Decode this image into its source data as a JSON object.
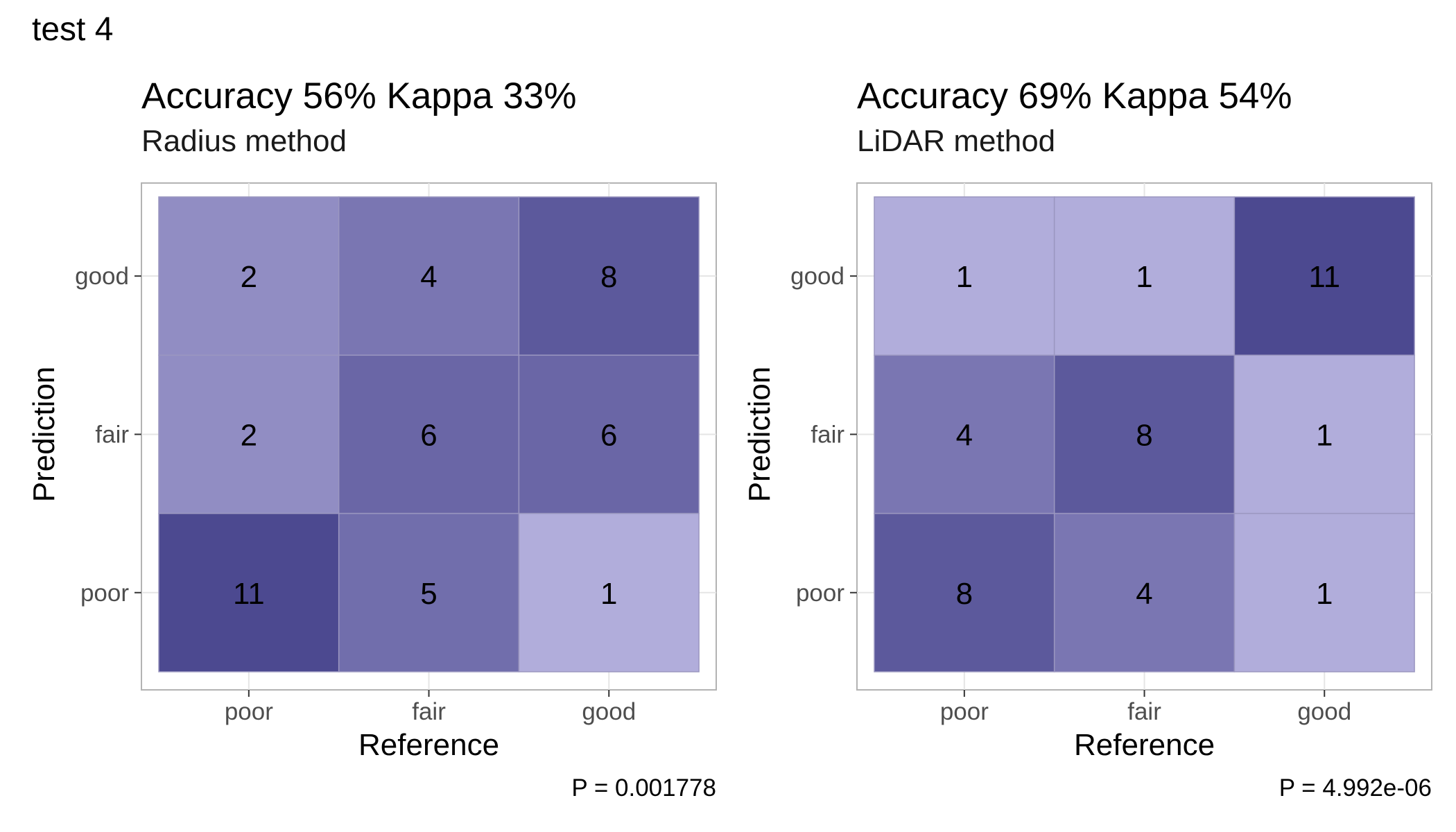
{
  "figure_title": "test 4",
  "chart_data": [
    {
      "type": "heatmap",
      "title": "Accuracy 56% Kappa 33%",
      "subtitle": "Radius method",
      "xlabel": "Reference",
      "ylabel": "Prediction",
      "x_categories": [
        "poor",
        "fair",
        "good"
      ],
      "y_categories": [
        "poor",
        "fair",
        "good"
      ],
      "cells": [
        {
          "reference": "poor",
          "prediction": "good",
          "value": 2
        },
        {
          "reference": "fair",
          "prediction": "good",
          "value": 4
        },
        {
          "reference": "good",
          "prediction": "good",
          "value": 8
        },
        {
          "reference": "poor",
          "prediction": "fair",
          "value": 2
        },
        {
          "reference": "fair",
          "prediction": "fair",
          "value": 6
        },
        {
          "reference": "good",
          "prediction": "fair",
          "value": 6
        },
        {
          "reference": "poor",
          "prediction": "poor",
          "value": 11
        },
        {
          "reference": "fair",
          "prediction": "poor",
          "value": 5
        },
        {
          "reference": "good",
          "prediction": "poor",
          "value": 1
        }
      ],
      "caption": "P = 0.001778",
      "grid": true,
      "color_low": "#b1addb",
      "color_high": "#4c4990"
    },
    {
      "type": "heatmap",
      "title": "Accuracy 69% Kappa 54%",
      "subtitle": "LiDAR method",
      "xlabel": "Reference",
      "ylabel": "Prediction",
      "x_categories": [
        "poor",
        "fair",
        "good"
      ],
      "y_categories": [
        "poor",
        "fair",
        "good"
      ],
      "cells": [
        {
          "reference": "poor",
          "prediction": "good",
          "value": 1
        },
        {
          "reference": "fair",
          "prediction": "good",
          "value": 1
        },
        {
          "reference": "good",
          "prediction": "good",
          "value": 11
        },
        {
          "reference": "poor",
          "prediction": "fair",
          "value": 4
        },
        {
          "reference": "fair",
          "prediction": "fair",
          "value": 8
        },
        {
          "reference": "good",
          "prediction": "fair",
          "value": 1
        },
        {
          "reference": "poor",
          "prediction": "poor",
          "value": 8
        },
        {
          "reference": "fair",
          "prediction": "poor",
          "value": 4
        },
        {
          "reference": "good",
          "prediction": "poor",
          "value": 1
        }
      ],
      "caption": "P = 4.992e-06",
      "grid": true,
      "color_low": "#b1addb",
      "color_high": "#4c4990"
    }
  ]
}
